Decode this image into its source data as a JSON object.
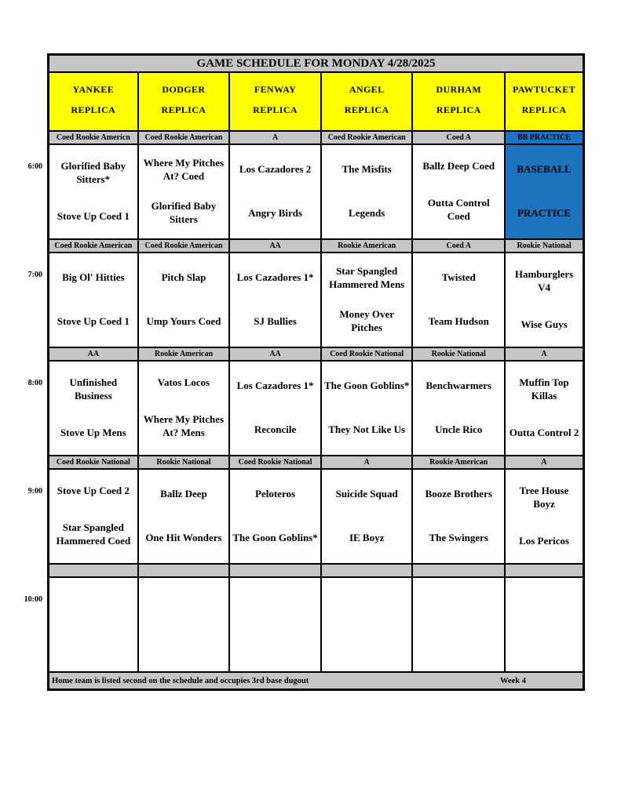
{
  "title": "GAME SCHEDULE FOR MONDAY 4/28/2025",
  "columns": [
    {
      "name": "YANKEE",
      "sub": "REPLICA"
    },
    {
      "name": "DODGER",
      "sub": "REPLICA"
    },
    {
      "name": "FENWAY",
      "sub": "REPLICA"
    },
    {
      "name": "ANGEL",
      "sub": "REPLICA"
    },
    {
      "name": "DURHAM",
      "sub": "REPLICA"
    },
    {
      "name": "PAWTUCKET",
      "sub": "REPLICA"
    }
  ],
  "time_slots": [
    {
      "time": "6:00",
      "cells": [
        {
          "division": "Coed Rookie Americn",
          "teams": [
            "Glorified Baby Sitters*",
            "Stove Up Coed 1"
          ],
          "highlight": false
        },
        {
          "division": "Coed Rookie American",
          "teams": [
            "Where My Pitches At? Coed",
            "Glorified Baby Sitters"
          ],
          "highlight": false
        },
        {
          "division": "A",
          "teams": [
            "Los Cazadores 2",
            "Angry Birds"
          ],
          "highlight": false
        },
        {
          "division": "Coed Rookie American",
          "teams": [
            "The Misfits",
            "Legends"
          ],
          "highlight": false
        },
        {
          "division": "Coed A",
          "teams": [
            "Ballz Deep Coed",
            "Outta Control Coed"
          ],
          "highlight": false
        },
        {
          "division": "BB PRACTICE",
          "teams": [
            "BASEBALL",
            "PRACTICE"
          ],
          "highlight": true
        }
      ]
    },
    {
      "time": "7:00",
      "cells": [
        {
          "division": "Coed Rookie American",
          "teams": [
            "Big Ol' Hitties",
            "Stove Up Coed 1"
          ],
          "highlight": false
        },
        {
          "division": "Coed Rookie American",
          "teams": [
            "Pitch Slap",
            "Ump Yours Coed"
          ],
          "highlight": false
        },
        {
          "division": "AA",
          "teams": [
            "Los Cazadores 1*",
            "SJ Bullies"
          ],
          "highlight": false
        },
        {
          "division": "Rookie American",
          "teams": [
            "Star Spangled Hammered Mens",
            "Money Over Pitches"
          ],
          "highlight": false
        },
        {
          "division": "Coed A",
          "teams": [
            "Twisted",
            "Team Hudson"
          ],
          "highlight": false
        },
        {
          "division": "Rookie National",
          "teams": [
            "Hamburglers V4",
            "Wise Guys"
          ],
          "highlight": false
        }
      ]
    },
    {
      "time": "8:00",
      "cells": [
        {
          "division": "AA",
          "teams": [
            "Unfinished Business",
            "Stove Up Mens"
          ],
          "highlight": false
        },
        {
          "division": "Rookie American",
          "teams": [
            "Vatos Locos",
            "Where My Pitches At? Mens"
          ],
          "highlight": false
        },
        {
          "division": "AA",
          "teams": [
            "Los Cazadores 1*",
            "Reconcile"
          ],
          "highlight": false
        },
        {
          "division": "Coed Rookie National",
          "teams": [
            "The Goon Goblins*",
            "They Not Like Us"
          ],
          "highlight": false
        },
        {
          "division": "Rookie National",
          "teams": [
            "Benchwarmers",
            "Uncle Rico"
          ],
          "highlight": false
        },
        {
          "division": "A",
          "teams": [
            "Muffin Top Killas",
            "Outta Control 2"
          ],
          "highlight": false
        }
      ]
    },
    {
      "time": "9:00",
      "cells": [
        {
          "division": "Coed Rookie National",
          "teams": [
            "Stove Up Coed 2",
            "Star Spangled Hammered Coed"
          ],
          "highlight": false
        },
        {
          "division": "Rookie National",
          "teams": [
            "Ballz Deep",
            "One Hit Wonders"
          ],
          "highlight": false
        },
        {
          "division": "Coed Rookie National",
          "teams": [
            "Peloteros",
            "The Goon Goblins*"
          ],
          "highlight": false
        },
        {
          "division": "A",
          "teams": [
            "Suicide Squad",
            "IE Boyz"
          ],
          "highlight": false
        },
        {
          "division": "Rookie American",
          "teams": [
            "Booze Brothers",
            "The Swingers"
          ],
          "highlight": false
        },
        {
          "division": "A",
          "teams": [
            "Tree House Boyz",
            "Los Pericos"
          ],
          "highlight": false
        }
      ]
    },
    {
      "time": "10:00",
      "cells": [
        {
          "division": "",
          "teams": [
            "",
            ""
          ],
          "highlight": false
        },
        {
          "division": "",
          "teams": [
            "",
            ""
          ],
          "highlight": false
        },
        {
          "division": "",
          "teams": [
            "",
            ""
          ],
          "highlight": false
        },
        {
          "division": "",
          "teams": [
            "",
            ""
          ],
          "highlight": false
        },
        {
          "division": "",
          "teams": [
            "",
            ""
          ],
          "highlight": false
        },
        {
          "division": "",
          "teams": [
            "",
            ""
          ],
          "highlight": false
        }
      ]
    }
  ],
  "footer": {
    "note": "Home team is listed second on the schedule and occupies 3rd base dugout",
    "week": "Week 4"
  },
  "colors": {
    "header_bg": "#FFFF00",
    "division_bg": "#C6C6C6",
    "title_bg": "#C6C6C6",
    "practice_bg": "#1E73BE",
    "grid": "#000000"
  }
}
